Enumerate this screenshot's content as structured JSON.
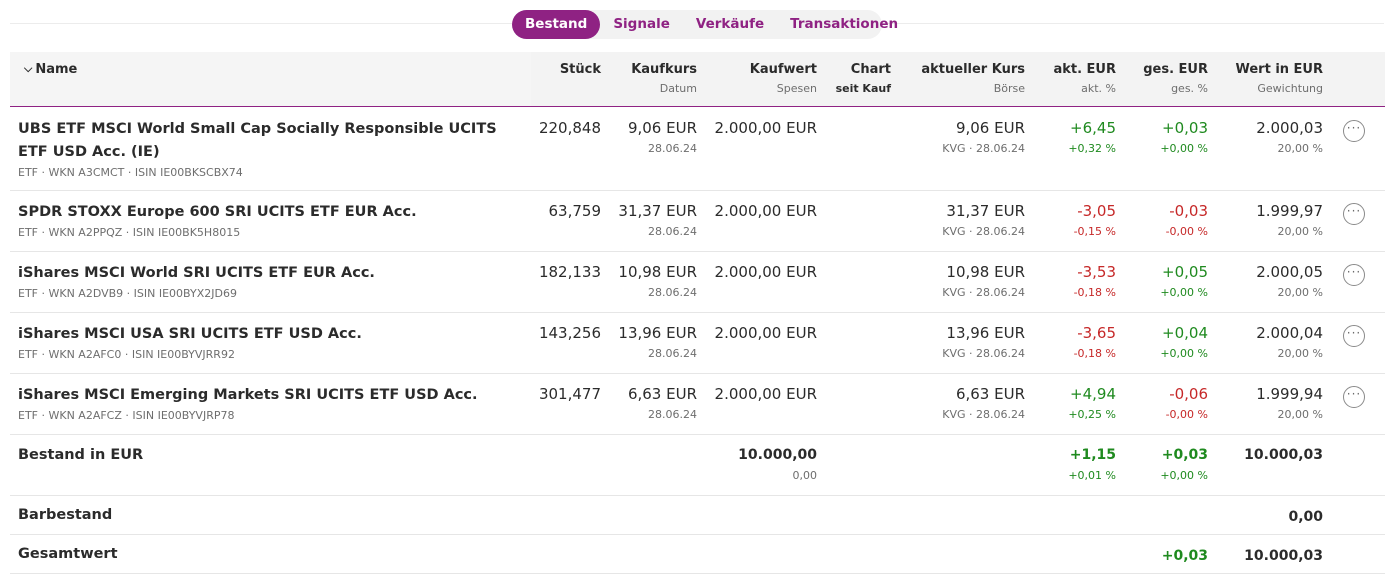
{
  "tabs": [
    {
      "label": "Bestand",
      "active": true
    },
    {
      "label": "Signale",
      "active": false
    },
    {
      "label": "Verkäufe",
      "active": false
    },
    {
      "label": "Transaktionen",
      "active": false
    }
  ],
  "headers": {
    "name": "Name",
    "stueck": "Stück",
    "kaufkurs": "Kaufkurs",
    "kaufkurs_sub": "Datum",
    "kaufwert": "Kaufwert",
    "kaufwert_sub": "Spesen",
    "chart": "Chart",
    "chart_sub": "seit Kauf",
    "kurs": "aktueller Kurs",
    "kurs_sub": "Börse",
    "akt": "akt. EUR",
    "akt_sub": "akt. %",
    "ges": "ges. EUR",
    "ges_sub": "ges. %",
    "wert": "Wert in EUR",
    "wert_sub": "Gewichtung"
  },
  "positions": [
    {
      "name": "UBS ETF MSCI World Small Cap Socially Responsible UCITS ETF USD Acc. (IE)",
      "meta": "ETF · WKN A3CMCT · ISIN IE00BKSCBX74",
      "stueck": "220,848",
      "kaufkurs": "9,06 EUR",
      "datum": "28.06.24",
      "kaufwert": "2.000,00 EUR",
      "kurs": "9,06 EUR",
      "boerse": "KVG · 28.06.24",
      "akt_eur": "+6,45",
      "akt_pct": "+0,32 %",
      "akt_sign": "pos",
      "ges_eur": "+0,03",
      "ges_pct": "+0,00 %",
      "ges_sign": "pos",
      "wert": "2.000,03",
      "gewichtung": "20,00 %"
    },
    {
      "name": "SPDR STOXX Europe 600 SRI UCITS ETF EUR Acc.",
      "meta": "ETF · WKN A2PPQZ · ISIN IE00BK5H8015",
      "stueck": "63,759",
      "kaufkurs": "31,37 EUR",
      "datum": "28.06.24",
      "kaufwert": "2.000,00 EUR",
      "kurs": "31,37 EUR",
      "boerse": "KVG · 28.06.24",
      "akt_eur": "-3,05",
      "akt_pct": "-0,15 %",
      "akt_sign": "neg",
      "ges_eur": "-0,03",
      "ges_pct": "-0,00 %",
      "ges_sign": "neg",
      "wert": "1.999,97",
      "gewichtung": "20,00 %"
    },
    {
      "name": "iShares MSCI World SRI UCITS ETF EUR Acc.",
      "meta": "ETF · WKN A2DVB9 · ISIN IE00BYX2JD69",
      "stueck": "182,133",
      "kaufkurs": "10,98 EUR",
      "datum": "28.06.24",
      "kaufwert": "2.000,00 EUR",
      "kurs": "10,98 EUR",
      "boerse": "KVG · 28.06.24",
      "akt_eur": "-3,53",
      "akt_pct": "-0,18 %",
      "akt_sign": "neg",
      "ges_eur": "+0,05",
      "ges_pct": "+0,00 %",
      "ges_sign": "pos",
      "wert": "2.000,05",
      "gewichtung": "20,00 %"
    },
    {
      "name": "iShares MSCI USA SRI UCITS ETF USD Acc.",
      "meta": "ETF · WKN A2AFC0 · ISIN IE00BYVJRR92",
      "stueck": "143,256",
      "kaufkurs": "13,96 EUR",
      "datum": "28.06.24",
      "kaufwert": "2.000,00 EUR",
      "kurs": "13,96 EUR",
      "boerse": "KVG · 28.06.24",
      "akt_eur": "-3,65",
      "akt_pct": "-0,18 %",
      "akt_sign": "neg",
      "ges_eur": "+0,04",
      "ges_pct": "+0,00 %",
      "ges_sign": "pos",
      "wert": "2.000,04",
      "gewichtung": "20,00 %"
    },
    {
      "name": "iShares MSCI Emerging Markets SRI UCITS ETF USD Acc.",
      "meta": "ETF · WKN A2AFCZ · ISIN IE00BYVJRP78",
      "stueck": "301,477",
      "kaufkurs": "6,63 EUR",
      "datum": "28.06.24",
      "kaufwert": "2.000,00 EUR",
      "kurs": "6,63 EUR",
      "boerse": "KVG · 28.06.24",
      "akt_eur": "+4,94",
      "akt_pct": "+0,25 %",
      "akt_sign": "pos",
      "ges_eur": "-0,06",
      "ges_pct": "-0,00 %",
      "ges_sign": "neg",
      "wert": "1.999,94",
      "gewichtung": "20,00 %"
    }
  ],
  "summary": {
    "bestand_label": "Bestand in EUR",
    "bestand_kaufwert": "10.000,00",
    "bestand_spesen": "0,00",
    "bestand_akt_eur": "+1,15",
    "bestand_akt_pct": "+0,01 %",
    "bestand_ges_eur": "+0,03",
    "bestand_ges_pct": "+0,00 %",
    "bestand_wert": "10.000,03",
    "barbestand_label": "Barbestand",
    "barbestand_wert": "0,00",
    "gesamt_label": "Gesamtwert",
    "gesamt_ges_eur": "+0,03",
    "gesamt_wert": "10.000,03"
  },
  "icons": {
    "more": "more-options-icon",
    "sort": "chevron-down-icon"
  },
  "colors": {
    "accent": "#8f2283",
    "positive": "#1f8a1f",
    "negative": "#c62828"
  }
}
